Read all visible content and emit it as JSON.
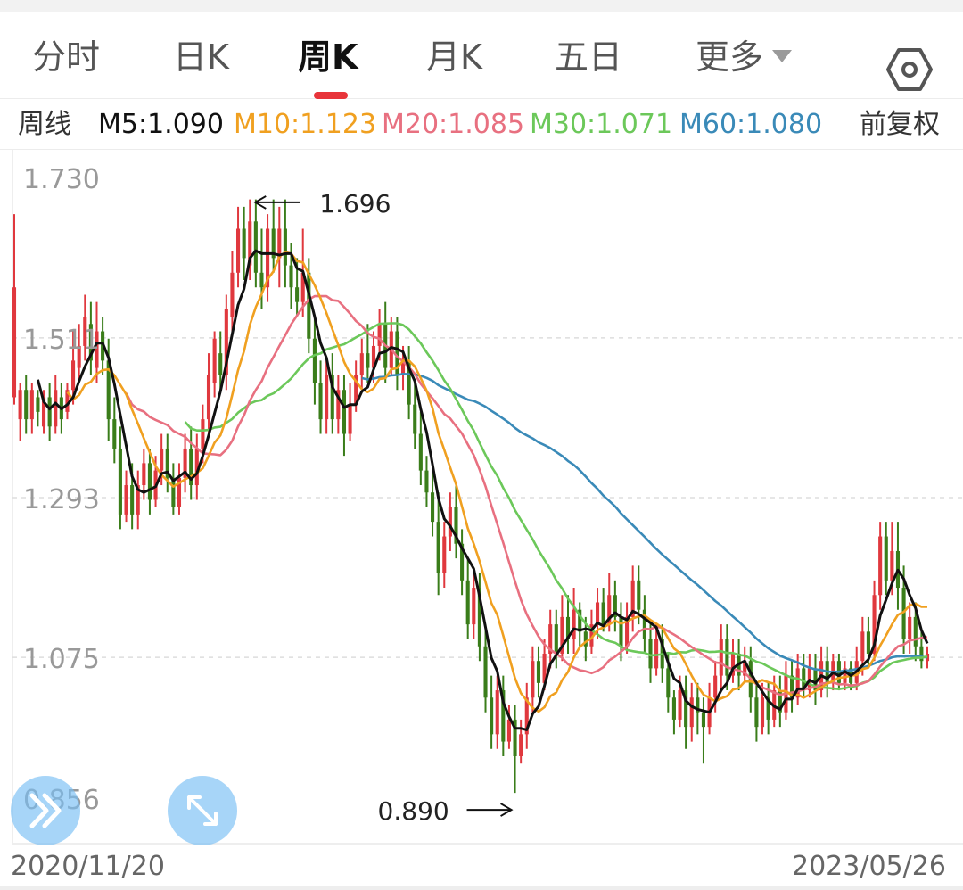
{
  "tabs": [
    {
      "label": "分时"
    },
    {
      "label": "日K"
    },
    {
      "label": "周K"
    },
    {
      "label": "月K"
    },
    {
      "label": "五日"
    },
    {
      "label": "更多"
    }
  ],
  "active_tab": "周K",
  "settings_icon": "hexagon-settings-icon",
  "ma_bar": {
    "period": "周线",
    "m5": "M5:1.090",
    "m10": "M10:1.123",
    "m20": "M20:1.085",
    "m30": "M30:1.071",
    "m60": "M60:1.080",
    "adjust": "前复权"
  },
  "colors": {
    "up": "#e0383e",
    "down": "#3a7d1a",
    "m5": "#111111",
    "m10": "#f0a020",
    "m20": "#e87080",
    "m30": "#6cc85a",
    "m60": "#3a8ab8",
    "accent": "#e8343a"
  },
  "chart_data": {
    "type": "candlestick",
    "ylim": [
      0.856,
      1.73
    ],
    "y_ticks": [
      "1.730",
      "1.511",
      "1.293",
      "1.075",
      "0.856"
    ],
    "date_start": "2020/11/20",
    "date_end": "2023/05/26",
    "annotations": [
      {
        "label": "1.696",
        "value": 1.696
      },
      {
        "label": "0.890",
        "value": 0.89
      }
    ],
    "candles": [
      [
        1.43,
        1.58,
        1.68,
        1.42
      ],
      [
        1.4,
        1.44,
        1.45,
        1.37
      ],
      [
        1.44,
        1.4,
        1.46,
        1.38
      ],
      [
        1.4,
        1.44,
        1.45,
        1.38
      ],
      [
        1.43,
        1.41,
        1.44,
        1.39
      ],
      [
        1.39,
        1.43,
        1.44,
        1.38
      ],
      [
        1.43,
        1.39,
        1.45,
        1.37
      ],
      [
        1.39,
        1.44,
        1.46,
        1.38
      ],
      [
        1.43,
        1.4,
        1.45,
        1.38
      ],
      [
        1.41,
        1.44,
        1.45,
        1.4
      ],
      [
        1.44,
        1.48,
        1.52,
        1.42
      ],
      [
        1.47,
        1.5,
        1.53,
        1.45
      ],
      [
        1.5,
        1.54,
        1.57,
        1.48
      ],
      [
        1.53,
        1.48,
        1.56,
        1.46
      ],
      [
        1.47,
        1.52,
        1.56,
        1.45
      ],
      [
        1.52,
        1.48,
        1.54,
        1.46
      ],
      [
        1.48,
        1.4,
        1.51,
        1.37
      ],
      [
        1.4,
        1.36,
        1.43,
        1.34
      ],
      [
        1.36,
        1.27,
        1.39,
        1.25
      ],
      [
        1.27,
        1.31,
        1.33,
        1.26
      ],
      [
        1.31,
        1.27,
        1.34,
        1.25
      ],
      [
        1.27,
        1.31,
        1.33,
        1.25
      ],
      [
        1.31,
        1.34,
        1.36,
        1.29
      ],
      [
        1.34,
        1.29,
        1.36,
        1.27
      ],
      [
        1.29,
        1.33,
        1.35,
        1.28
      ],
      [
        1.33,
        1.36,
        1.38,
        1.31
      ],
      [
        1.36,
        1.32,
        1.38,
        1.3
      ],
      [
        1.32,
        1.28,
        1.34,
        1.27
      ],
      [
        1.28,
        1.32,
        1.34,
        1.27
      ],
      [
        1.32,
        1.36,
        1.38,
        1.3
      ],
      [
        1.36,
        1.31,
        1.39,
        1.29
      ],
      [
        1.31,
        1.36,
        1.38,
        1.29
      ],
      [
        1.36,
        1.4,
        1.42,
        1.34
      ],
      [
        1.4,
        1.46,
        1.49,
        1.38
      ],
      [
        1.45,
        1.51,
        1.52,
        1.43
      ],
      [
        1.49,
        1.46,
        1.52,
        1.44
      ],
      [
        1.46,
        1.55,
        1.57,
        1.44
      ],
      [
        1.54,
        1.6,
        1.63,
        1.52
      ],
      [
        1.6,
        1.66,
        1.69,
        1.58
      ],
      [
        1.66,
        1.62,
        1.69,
        1.59
      ],
      [
        1.61,
        1.67,
        1.7,
        1.59
      ],
      [
        1.67,
        1.6,
        1.7,
        1.58
      ],
      [
        1.6,
        1.58,
        1.66,
        1.55
      ],
      [
        1.58,
        1.66,
        1.68,
        1.56
      ],
      [
        1.66,
        1.62,
        1.7,
        1.6
      ],
      [
        1.62,
        1.66,
        1.69,
        1.58
      ],
      [
        1.66,
        1.61,
        1.7,
        1.58
      ],
      [
        1.61,
        1.58,
        1.64,
        1.55
      ],
      [
        1.58,
        1.56,
        1.62,
        1.54
      ],
      [
        1.56,
        1.6,
        1.66,
        1.54
      ],
      [
        1.6,
        1.51,
        1.62,
        1.49
      ],
      [
        1.51,
        1.45,
        1.54,
        1.42
      ],
      [
        1.45,
        1.4,
        1.48,
        1.38
      ],
      [
        1.4,
        1.46,
        1.48,
        1.38
      ],
      [
        1.46,
        1.4,
        1.49,
        1.38
      ],
      [
        1.4,
        1.44,
        1.46,
        1.38
      ],
      [
        1.44,
        1.38,
        1.46,
        1.35
      ],
      [
        1.38,
        1.42,
        1.45,
        1.37
      ],
      [
        1.42,
        1.46,
        1.48,
        1.41
      ],
      [
        1.46,
        1.49,
        1.51,
        1.44
      ],
      [
        1.49,
        1.47,
        1.53,
        1.45
      ],
      [
        1.47,
        1.5,
        1.52,
        1.45
      ],
      [
        1.5,
        1.53,
        1.55,
        1.48
      ],
      [
        1.53,
        1.47,
        1.56,
        1.45
      ],
      [
        1.47,
        1.52,
        1.54,
        1.46
      ],
      [
        1.52,
        1.46,
        1.54,
        1.44
      ],
      [
        1.46,
        1.48,
        1.5,
        1.44
      ],
      [
        1.48,
        1.42,
        1.5,
        1.4
      ],
      [
        1.42,
        1.38,
        1.45,
        1.36
      ],
      [
        1.38,
        1.33,
        1.41,
        1.31
      ],
      [
        1.33,
        1.3,
        1.35,
        1.28
      ],
      [
        1.3,
        1.26,
        1.33,
        1.24
      ],
      [
        1.26,
        1.19,
        1.3,
        1.16
      ],
      [
        1.19,
        1.24,
        1.26,
        1.17
      ],
      [
        1.24,
        1.28,
        1.3,
        1.22
      ],
      [
        1.28,
        1.23,
        1.31,
        1.21
      ],
      [
        1.23,
        1.18,
        1.25,
        1.16
      ],
      [
        1.18,
        1.12,
        1.21,
        1.1
      ],
      [
        1.12,
        1.17,
        1.19,
        1.1
      ],
      [
        1.17,
        1.09,
        1.19,
        1.07
      ],
      [
        1.09,
        1.02,
        1.12,
        1.0
      ],
      [
        1.02,
        0.97,
        1.05,
        0.95
      ],
      [
        0.97,
        1.03,
        1.05,
        0.95
      ],
      [
        1.03,
        0.96,
        1.05,
        0.94
      ],
      [
        0.96,
        0.99,
        1.01,
        0.95
      ],
      [
        0.99,
        0.94,
        1.01,
        0.89
      ],
      [
        0.94,
        0.97,
        0.99,
        0.93
      ],
      [
        0.97,
        1.02,
        1.04,
        0.95
      ],
      [
        1.02,
        1.07,
        1.09,
        1.0
      ],
      [
        1.07,
        1.04,
        1.09,
        1.02
      ],
      [
        1.04,
        1.08,
        1.1,
        1.03
      ],
      [
        1.08,
        1.12,
        1.14,
        1.06
      ],
      [
        1.12,
        1.08,
        1.14,
        1.06
      ],
      [
        1.08,
        1.13,
        1.16,
        1.07
      ],
      [
        1.13,
        1.1,
        1.16,
        1.08
      ],
      [
        1.1,
        1.14,
        1.17,
        1.08
      ],
      [
        1.14,
        1.11,
        1.15,
        1.09
      ],
      [
        1.11,
        1.09,
        1.13,
        1.07
      ],
      [
        1.09,
        1.12,
        1.14,
        1.08
      ],
      [
        1.12,
        1.15,
        1.17,
        1.1
      ],
      [
        1.15,
        1.12,
        1.17,
        1.11
      ],
      [
        1.12,
        1.16,
        1.19,
        1.11
      ],
      [
        1.16,
        1.13,
        1.18,
        1.11
      ],
      [
        1.13,
        1.09,
        1.15,
        1.07
      ],
      [
        1.09,
        1.13,
        1.15,
        1.08
      ],
      [
        1.13,
        1.18,
        1.2,
        1.11
      ],
      [
        1.18,
        1.14,
        1.2,
        1.12
      ],
      [
        1.14,
        1.1,
        1.16,
        1.08
      ],
      [
        1.1,
        1.06,
        1.12,
        1.04
      ],
      [
        1.06,
        1.1,
        1.12,
        1.05
      ],
      [
        1.1,
        1.06,
        1.12,
        1.04
      ],
      [
        1.06,
        1.02,
        1.08,
        1.0
      ],
      [
        1.02,
        0.99,
        1.03,
        0.97
      ],
      [
        0.99,
        1.03,
        1.05,
        0.98
      ],
      [
        1.03,
        0.98,
        1.05,
        0.95
      ],
      [
        0.98,
        1.02,
        1.04,
        0.96
      ],
      [
        1.02,
        1.0,
        1.04,
        0.97
      ],
      [
        1.0,
        0.98,
        1.02,
        0.93
      ],
      [
        0.98,
        1.02,
        1.04,
        0.97
      ],
      [
        1.02,
        1.05,
        1.07,
        1.0
      ],
      [
        1.05,
        1.1,
        1.12,
        1.03
      ],
      [
        1.1,
        1.05,
        1.12,
        1.03
      ],
      [
        1.05,
        1.08,
        1.1,
        1.04
      ],
      [
        1.08,
        1.05,
        1.1,
        1.03
      ],
      [
        1.05,
        1.07,
        1.09,
        1.04
      ],
      [
        1.07,
        1.02,
        1.09,
        1.0
      ],
      [
        1.02,
        0.98,
        1.04,
        0.96
      ],
      [
        0.98,
        1.02,
        1.04,
        0.97
      ],
      [
        1.02,
        0.99,
        1.04,
        0.97
      ],
      [
        0.99,
        1.03,
        1.05,
        0.98
      ],
      [
        1.03,
        1.0,
        1.05,
        0.98
      ],
      [
        1.0,
        1.05,
        1.07,
        0.99
      ],
      [
        1.05,
        1.02,
        1.07,
        1.0
      ],
      [
        1.02,
        1.06,
        1.08,
        1.01
      ],
      [
        1.06,
        1.03,
        1.08,
        1.02
      ],
      [
        1.03,
        1.06,
        1.08,
        1.02
      ],
      [
        1.06,
        1.03,
        1.08,
        1.01
      ],
      [
        1.03,
        1.07,
        1.09,
        1.02
      ],
      [
        1.07,
        1.04,
        1.09,
        1.02
      ],
      [
        1.04,
        1.07,
        1.08,
        1.03
      ],
      [
        1.07,
        1.04,
        1.08,
        1.03
      ],
      [
        1.04,
        1.06,
        1.07,
        1.03
      ],
      [
        1.06,
        1.04,
        1.07,
        1.03
      ],
      [
        1.04,
        1.07,
        1.09,
        1.03
      ],
      [
        1.07,
        1.11,
        1.13,
        1.05
      ],
      [
        1.11,
        1.08,
        1.13,
        1.06
      ],
      [
        1.08,
        1.16,
        1.18,
        1.07
      ],
      [
        1.16,
        1.24,
        1.26,
        1.14
      ],
      [
        1.24,
        1.18,
        1.26,
        1.16
      ],
      [
        1.18,
        1.22,
        1.26,
        1.16
      ],
      [
        1.22,
        1.17,
        1.26,
        1.14
      ],
      [
        1.17,
        1.1,
        1.2,
        1.08
      ],
      [
        1.1,
        1.13,
        1.15,
        1.08
      ],
      [
        1.13,
        1.09,
        1.15,
        1.07
      ],
      [
        1.09,
        1.07,
        1.11,
        1.06
      ],
      [
        1.07,
        1.08,
        1.09,
        1.06
      ]
    ]
  }
}
